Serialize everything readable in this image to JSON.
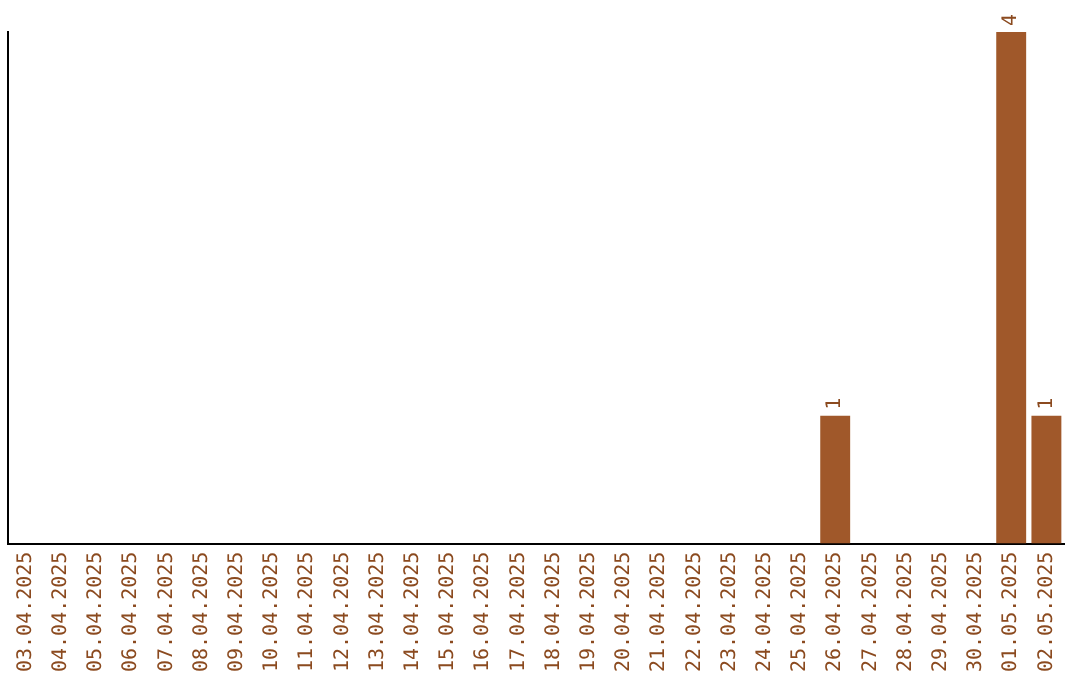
{
  "chart_data": {
    "type": "bar",
    "categories": [
      "03.04.2025",
      "04.04.2025",
      "05.04.2025",
      "06.04.2025",
      "07.04.2025",
      "08.04.2025",
      "09.04.2025",
      "10.04.2025",
      "11.04.2025",
      "12.04.2025",
      "13.04.2025",
      "14.04.2025",
      "15.04.2025",
      "16.04.2025",
      "17.04.2025",
      "18.04.2025",
      "19.04.2025",
      "20.04.2025",
      "21.04.2025",
      "22.04.2025",
      "23.04.2025",
      "24.04.2025",
      "25.04.2025",
      "26.04.2025",
      "27.04.2025",
      "28.04.2025",
      "29.04.2025",
      "30.04.2025",
      "01.05.2025",
      "02.05.2025"
    ],
    "values": [
      null,
      null,
      null,
      null,
      null,
      null,
      null,
      null,
      null,
      null,
      null,
      null,
      null,
      null,
      null,
      null,
      null,
      null,
      null,
      null,
      null,
      null,
      null,
      1,
      null,
      null,
      null,
      null,
      4,
      1
    ],
    "data_labels": true,
    "tick_labels": "x",
    "color": "#a0582a",
    "grid": false,
    "legend": false
  }
}
